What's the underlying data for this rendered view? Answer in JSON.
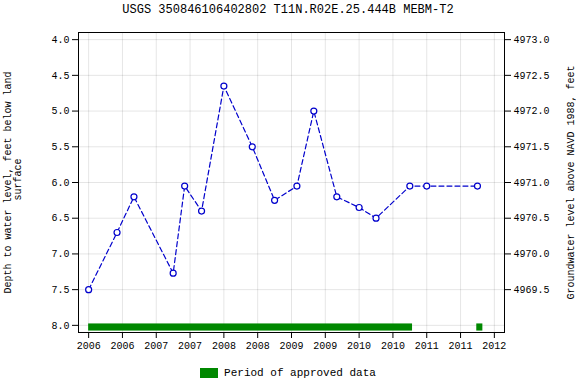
{
  "chart_data": {
    "type": "line",
    "title": "USGS 350846106402802 T11N.R02E.25.444B MEBM-T2",
    "x": [
      2006.0,
      2006.42,
      2006.67,
      2007.25,
      2007.42,
      2007.67,
      2008.0,
      2008.42,
      2008.75,
      2009.08,
      2009.33,
      2009.67,
      2010.0,
      2010.25,
      2010.75,
      2011.0,
      2011.75
    ],
    "values": [
      7.5,
      6.7,
      6.2,
      7.27,
      6.05,
      6.4,
      4.65,
      5.5,
      6.25,
      6.05,
      5.0,
      6.2,
      6.35,
      6.5,
      6.05,
      6.05,
      6.05
    ],
    "color": "#0000cc",
    "marker": "circle",
    "line_style": "dashed",
    "xlim": [
      2005.85,
      2012.15
    ],
    "xticks": [
      2006,
      {
        "value": 2006.5,
        "label": "2006"
      },
      2007,
      {
        "value": 2007.5,
        "label": "2007"
      },
      2008,
      {
        "value": 2008.5,
        "label": "2008"
      },
      2009,
      {
        "value": 2009.5,
        "label": "2009"
      },
      2010,
      {
        "value": 2010.5,
        "label": "2010"
      },
      2011,
      {
        "value": 2011.5,
        "label": "2011"
      },
      2012
    ],
    "ylabel": "Depth to water level, feet below land\n surface",
    "ylim": [
      8.1,
      3.9
    ],
    "yticks": [
      {
        "value": 4.0,
        "label": "4.0"
      },
      4.5,
      {
        "value": 5.0,
        "label": "5.0"
      },
      5.5,
      {
        "value": 6.0,
        "label": "6.0"
      },
      6.5,
      {
        "value": 7.0,
        "label": "7.0"
      },
      7.5,
      {
        "value": 8.0,
        "label": "8.0"
      }
    ],
    "y2label": "Groundwater level above NAVD 1988, feet",
    "y2lim": [
      4968.9,
      4973.1
    ],
    "y2ticks": [
      {
        "value": 4973.0,
        "label": "4973.0"
      },
      4972.5,
      {
        "value": 4972.0,
        "label": "4972.0"
      },
      4971.5,
      {
        "value": 4971.0,
        "label": "4971.0"
      },
      4970.5,
      {
        "value": 4970.0,
        "label": "4970.0"
      },
      4969.5
    ],
    "grid": true,
    "legend": "bottom",
    "approved_periods": {
      "name": "Period of approved data",
      "color": "#008800",
      "spans": [
        [
          2006.0,
          2010.79
        ],
        [
          2011.74,
          2011.83
        ]
      ],
      "band": [
        7.98,
        8.08
      ]
    }
  }
}
